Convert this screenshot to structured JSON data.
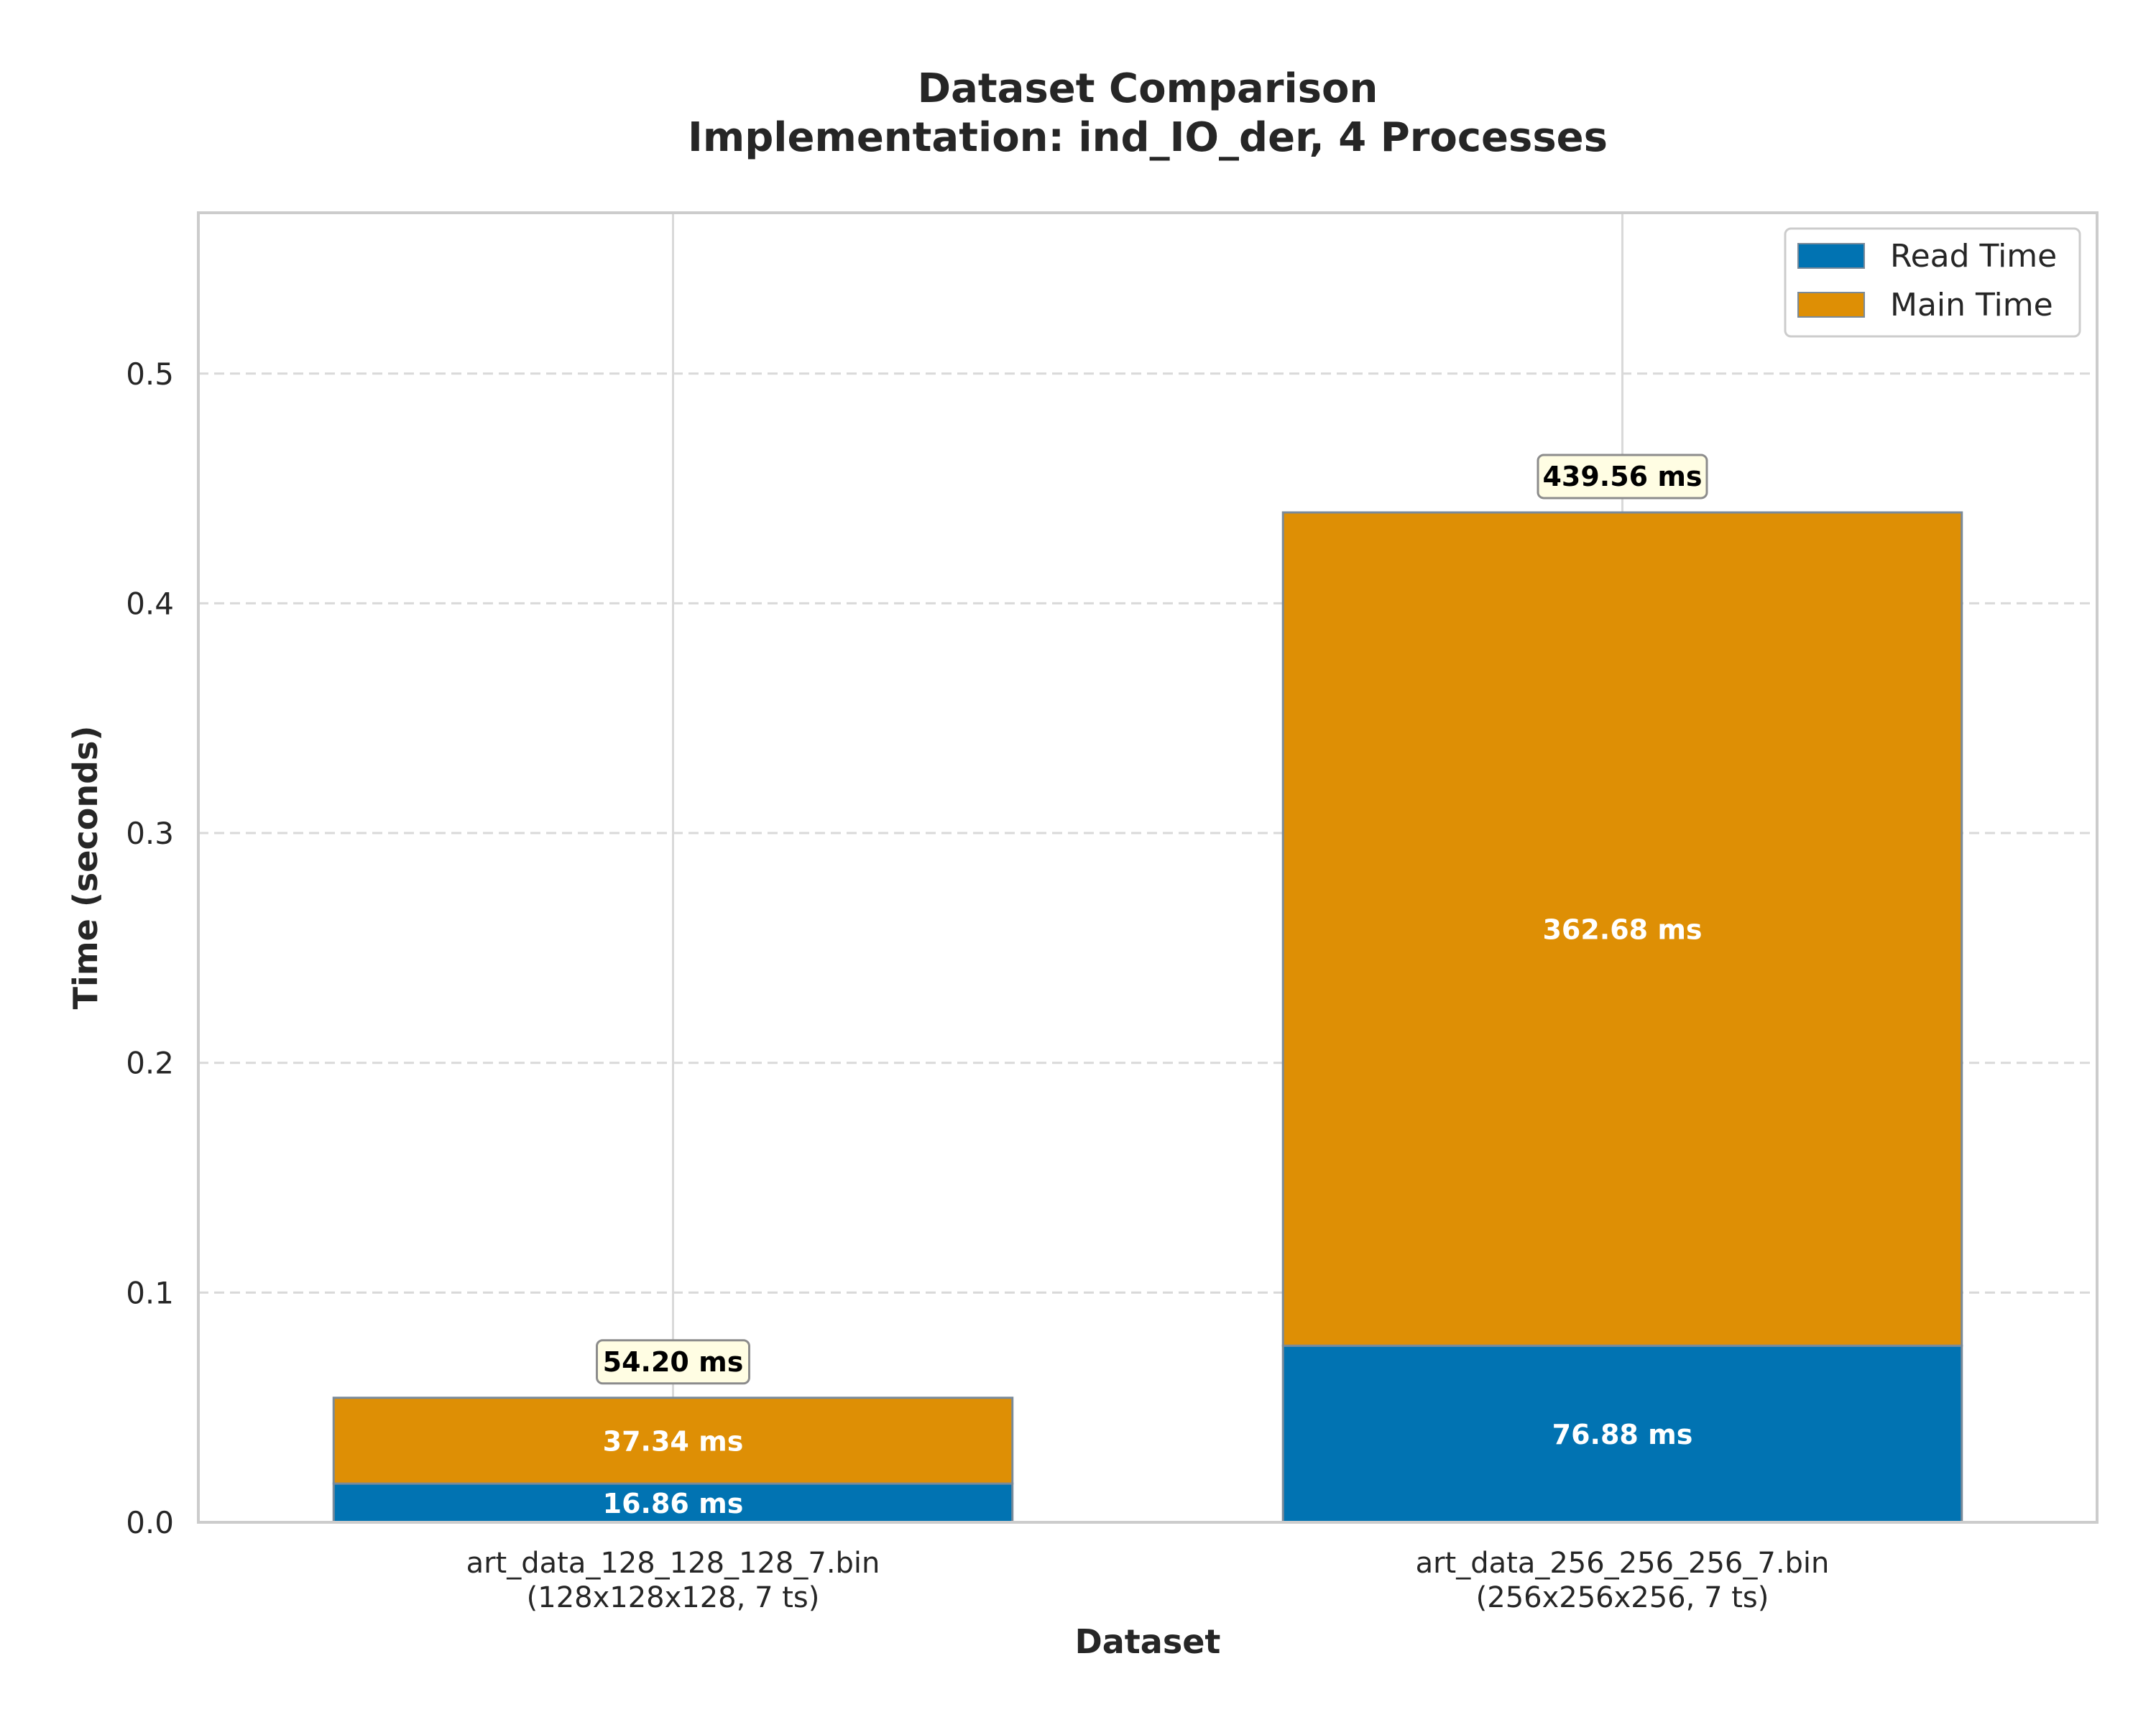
{
  "chart_data": {
    "type": "bar",
    "stacked": true,
    "title": "Dataset Comparison",
    "subtitle": "Implementation: ind_IO_der, 4 Processes",
    "xlabel": "Dataset",
    "ylabel": "Time (seconds)",
    "ylim": [
      0,
      0.57
    ],
    "yticks": [
      0.0,
      0.1,
      0.2,
      0.3,
      0.4,
      0.5
    ],
    "ytick_labels": [
      "0.0",
      "0.1",
      "0.2",
      "0.3",
      "0.4",
      "0.5"
    ],
    "grid": {
      "y": "dashed",
      "x": "solid"
    },
    "legend_placement": "top-right",
    "categories": [
      [
        "art_data_128_128_128_7.bin",
        "(128x128x128, 7 ts)"
      ],
      [
        "art_data_256_256_256_7.bin",
        "(256x256x256, 7 ts)"
      ]
    ],
    "series": [
      {
        "name": "Read Time",
        "values": [
          0.01686,
          0.07688
        ],
        "labels": [
          "16.86 ms",
          "76.88 ms"
        ],
        "color": "#0173b2"
      },
      {
        "name": "Main Time",
        "values": [
          0.03734,
          0.36268
        ],
        "labels": [
          "37.34 ms",
          "362.68 ms"
        ],
        "color": "#de8f05"
      }
    ],
    "totals": {
      "values": [
        0.0542,
        0.43956
      ],
      "labels": [
        "54.20 ms",
        "439.56 ms"
      ]
    },
    "colors": {
      "bar_edge": "#7a8a99",
      "total_box_fill": "#fffde3",
      "total_box_edge": "#8c8c8c",
      "grid": "#d9d9d9",
      "frame": "#cccccc"
    }
  }
}
